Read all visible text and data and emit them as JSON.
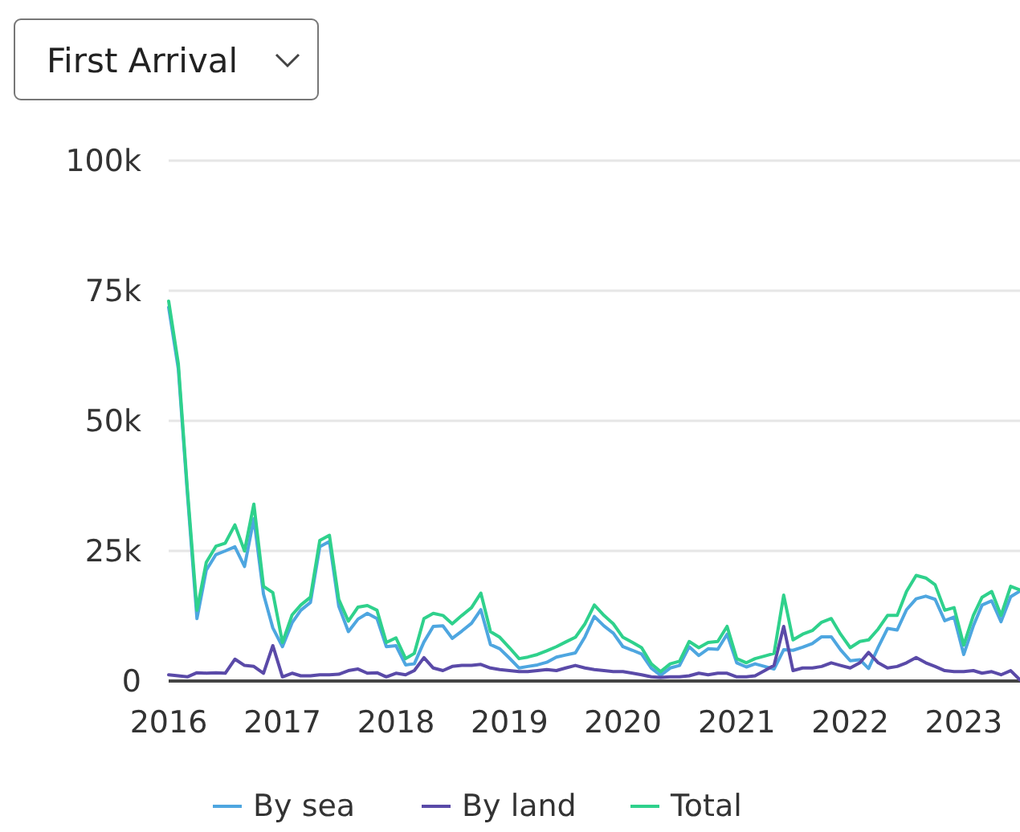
{
  "chart_data": {
    "type": "line",
    "annotations": [
      "First Arrival"
    ],
    "x": [
      "2016-01",
      "2016-02",
      "2016-03",
      "2016-04",
      "2016-05",
      "2016-06",
      "2016-07",
      "2016-08",
      "2016-09",
      "2016-10",
      "2016-11",
      "2016-12",
      "2017-01",
      "2017-02",
      "2017-03",
      "2017-04",
      "2017-05",
      "2017-06",
      "2017-07",
      "2017-08",
      "2017-09",
      "2017-10",
      "2017-11",
      "2017-12",
      "2018-01",
      "2018-02",
      "2018-03",
      "2018-04",
      "2018-05",
      "2018-06",
      "2018-07",
      "2018-08",
      "2018-09",
      "2018-10",
      "2018-11",
      "2018-12",
      "2019-01",
      "2019-02",
      "2019-03",
      "2019-04",
      "2019-05",
      "2019-06",
      "2019-07",
      "2019-08",
      "2019-09",
      "2019-10",
      "2019-11",
      "2019-12",
      "2020-01",
      "2020-02",
      "2020-03",
      "2020-04",
      "2020-05",
      "2020-06",
      "2020-07",
      "2020-08",
      "2020-09",
      "2020-10",
      "2020-11",
      "2020-12",
      "2021-01",
      "2021-02",
      "2021-03",
      "2021-04",
      "2021-05",
      "2021-06",
      "2021-07",
      "2021-08",
      "2021-09",
      "2021-10",
      "2021-11",
      "2021-12",
      "2022-01",
      "2022-02",
      "2022-03",
      "2022-04",
      "2022-05",
      "2022-06",
      "2022-07",
      "2022-08",
      "2022-09",
      "2022-10",
      "2022-11",
      "2022-12",
      "2023-01",
      "2023-02",
      "2023-03",
      "2023-04",
      "2023-05",
      "2023-06",
      "2023-07"
    ],
    "series": [
      {
        "name": "By sea",
        "color": "#4ea6e0",
        "values": [
          71800,
          60000,
          36200,
          12000,
          21300,
          24300,
          25000,
          25800,
          22000,
          31200,
          16700,
          10200,
          6600,
          11200,
          13600,
          15100,
          25800,
          26800,
          14400,
          9500,
          11900,
          13000,
          12000,
          6600,
          6800,
          3100,
          3300,
          7500,
          10500,
          10600,
          8200,
          9600,
          11100,
          13700,
          7000,
          6200,
          4400,
          2500,
          2800,
          3100,
          3600,
          4600,
          5000,
          5400,
          8500,
          12400,
          10600,
          9200,
          6600,
          5900,
          5200,
          2500,
          1100,
          2500,
          3000,
          6600,
          4900,
          6200,
          6100,
          9000,
          3500,
          2700,
          3300,
          2800,
          2300,
          6000,
          5900,
          6500,
          7200,
          8500,
          8500,
          6000,
          3900,
          4100,
          2400,
          6500,
          10100,
          9800,
          13700,
          15800,
          16300,
          15700,
          11600,
          12300,
          5100,
          10600,
          14600,
          15400,
          11400,
          16200,
          17300
        ]
      },
      {
        "name": "By land",
        "color": "#5a4aa8",
        "values": [
          1200,
          1000,
          800,
          1600,
          1500,
          1600,
          1500,
          4200,
          3000,
          2800,
          1500,
          6800,
          800,
          1500,
          1000,
          1000,
          1200,
          1200,
          1300,
          2000,
          2300,
          1500,
          1600,
          800,
          1500,
          1200,
          2000,
          4500,
          2500,
          2000,
          2800,
          3000,
          3000,
          3200,
          2500,
          2200,
          2000,
          1800,
          1800,
          2000,
          2200,
          2000,
          2500,
          3000,
          2500,
          2200,
          2000,
          1800,
          1800,
          1500,
          1200,
          800,
          700,
          800,
          800,
          1000,
          1500,
          1200,
          1500,
          1500,
          800,
          800,
          1000,
          2000,
          3000,
          10500,
          2000,
          2500,
          2500,
          2800,
          3500,
          3000,
          2500,
          3500,
          5500,
          3500,
          2500,
          2800,
          3500,
          4500,
          3500,
          2800,
          2000,
          1800,
          1800,
          2000,
          1500,
          1800,
          1200,
          2000,
          200
        ]
      },
      {
        "name": "Total",
        "color": "#2fd18c",
        "values": [
          73000,
          61000,
          37000,
          13600,
          22800,
          25900,
          26500,
          30000,
          25000,
          34000,
          18200,
          17000,
          7400,
          12700,
          14600,
          16100,
          27000,
          28000,
          15700,
          11500,
          14200,
          14500,
          13600,
          7400,
          8300,
          4300,
          5300,
          12000,
          13000,
          12600,
          11000,
          12600,
          14100,
          16900,
          9500,
          8400,
          6400,
          4300,
          4600,
          5100,
          5800,
          6600,
          7500,
          8400,
          11000,
          14600,
          12600,
          11000,
          8400,
          7400,
          6400,
          3300,
          1800,
          3300,
          3800,
          7600,
          6400,
          7400,
          7600,
          10500,
          4300,
          3500,
          4300,
          4800,
          5300,
          16500,
          7900,
          9000,
          9700,
          11300,
          12000,
          9000,
          6400,
          7600,
          7900,
          10000,
          12600,
          12600,
          17200,
          20300,
          19800,
          18500,
          13600,
          14100,
          6900,
          12600,
          16100,
          17200,
          12600,
          18200,
          17500
        ]
      }
    ],
    "xlim": [
      "2016-01",
      "2023-07"
    ],
    "xticks": [
      {
        "value": "2016",
        "label": "2016"
      },
      {
        "value": "2017",
        "label": "2017"
      },
      {
        "value": "2018",
        "label": "2018"
      },
      {
        "value": "2019",
        "label": "2019"
      },
      {
        "value": "2020",
        "label": "2020"
      },
      {
        "value": "2021",
        "label": "2021"
      },
      {
        "value": "2022",
        "label": "2022"
      },
      {
        "value": "2023",
        "label": "2023"
      }
    ],
    "ylim": [
      0,
      100000
    ],
    "yticks": [
      {
        "value": 0,
        "label": "0"
      },
      {
        "value": 25000,
        "label": "25k"
      },
      {
        "value": 50000,
        "label": "50k"
      },
      {
        "value": 75000,
        "label": "75k"
      },
      {
        "value": 100000,
        "label": "100k"
      }
    ],
    "grid": "y",
    "legend": "bottom",
    "marker": "none",
    "line_style": "solid"
  }
}
